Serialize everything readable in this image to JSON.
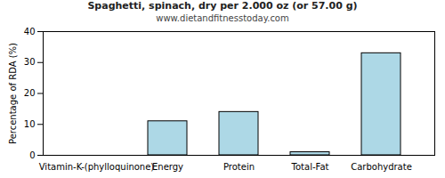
{
  "chart_data": {
    "type": "bar",
    "title": "Spaghetti, spinach, dry per 2.000 oz (or 57.00 g)",
    "subtitle": "www.dietandfitnesstoday.com",
    "y_label": "Percentage of RDA (%)",
    "categories": [
      "Vitamin-K-(phylloquinone)",
      "Energy",
      "Protein",
      "Total-Fat",
      "Carbohydrate"
    ],
    "values": [
      0,
      11,
      14,
      1,
      33
    ],
    "color": "#add8e6",
    "ylim": [
      0,
      40
    ],
    "yticks": [
      0,
      10,
      20,
      30,
      40
    ],
    "grid": false
  }
}
